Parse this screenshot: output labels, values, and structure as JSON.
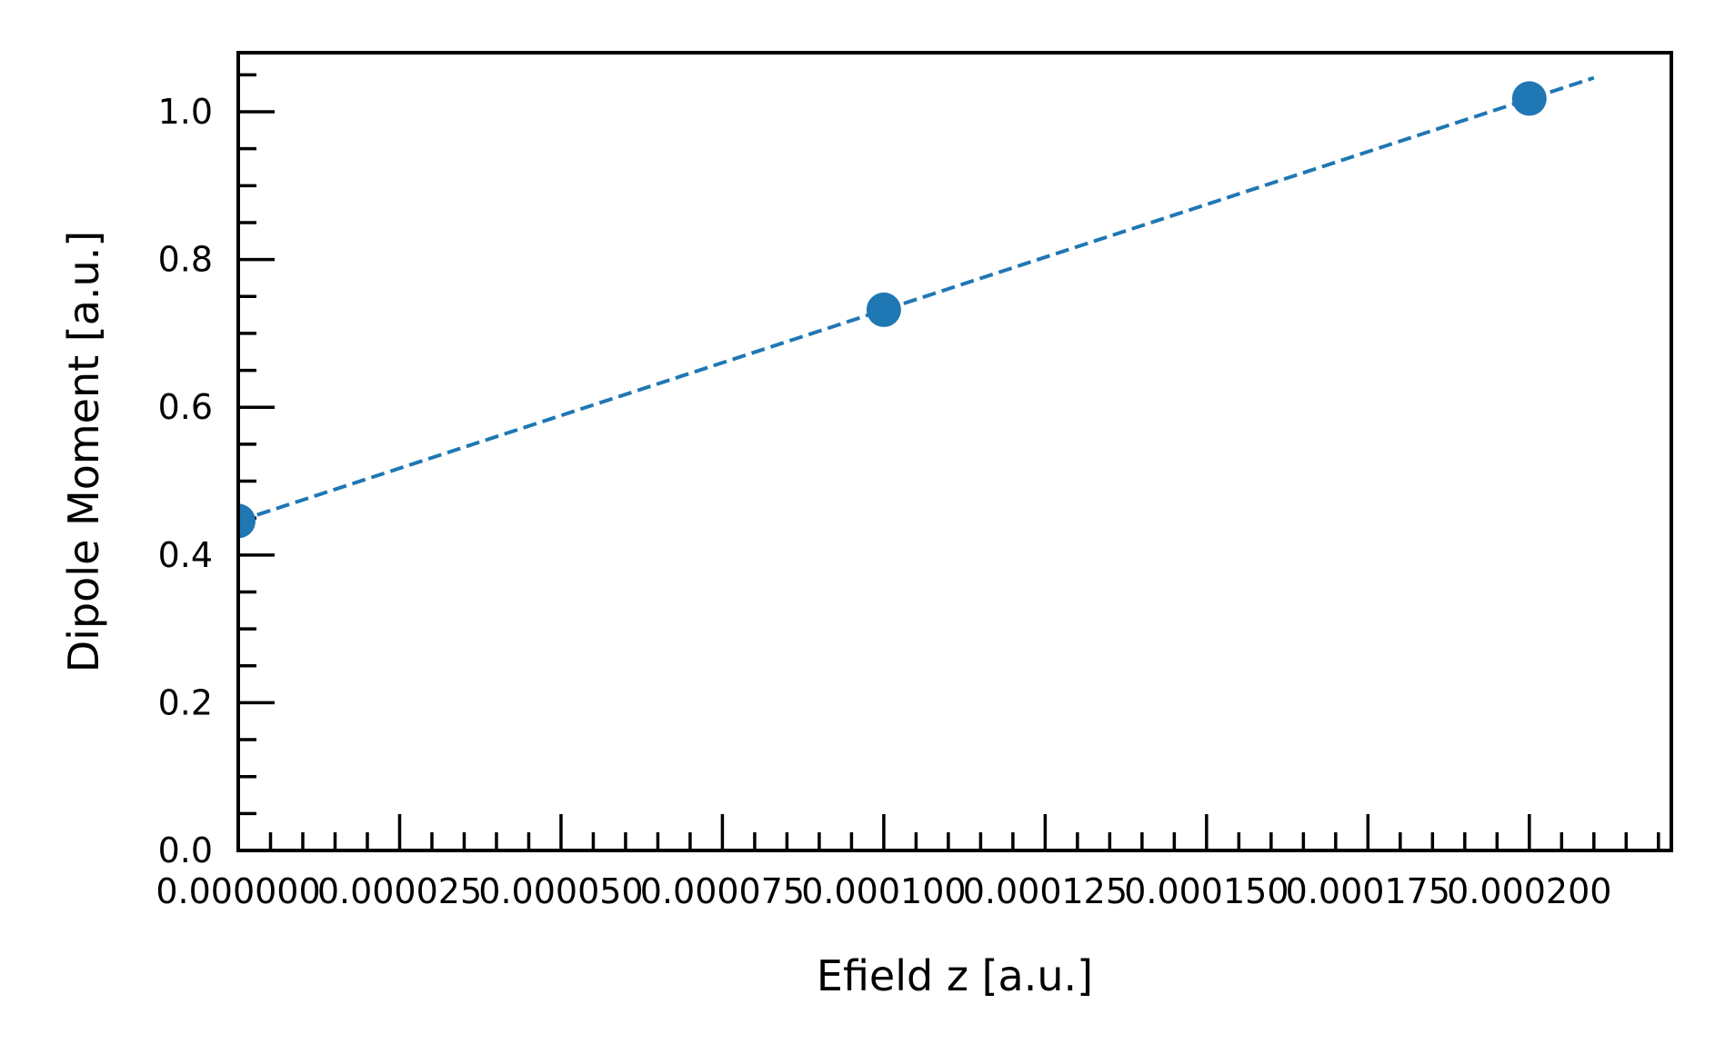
{
  "chart_data": {
    "type": "scatter",
    "xlabel": "Efield z [a.u.]",
    "ylabel": "Dipole Moment [a.u.]",
    "xlim": [
      0,
      0.000222
    ],
    "ylim": [
      0,
      1.08
    ],
    "grid": false,
    "legend": "none",
    "x_ticks": [
      0,
      2.5e-05,
      5e-05,
      7.5e-05,
      0.0001,
      0.000125,
      0.00015,
      0.000175,
      0.0002
    ],
    "x_tick_labels": [
      "0.000000",
      "0.000025",
      "0.000050",
      "0.000075",
      "0.000100",
      "0.000125",
      "0.000150",
      "0.000175",
      "0.000200"
    ],
    "x_minor_step": 5e-06,
    "y_ticks": [
      0,
      0.2,
      0.4,
      0.6,
      0.8,
      1.0
    ],
    "y_tick_labels": [
      "0.0",
      "0.2",
      "0.4",
      "0.6",
      "0.8",
      "1.0"
    ],
    "y_minor_step": 0.05,
    "series": [
      {
        "color": "#1f77b4",
        "points": [
          {
            "x": 0.0,
            "y": 0.446
          },
          {
            "x": 0.0001,
            "y": 0.732
          },
          {
            "x": 0.0002,
            "y": 1.018
          }
        ]
      }
    ],
    "fit_line": {
      "color": "#1f77b4",
      "style": "dashed",
      "x": [
        0.0,
        0.00021
      ],
      "y": [
        0.446,
        1.046
      ]
    }
  }
}
